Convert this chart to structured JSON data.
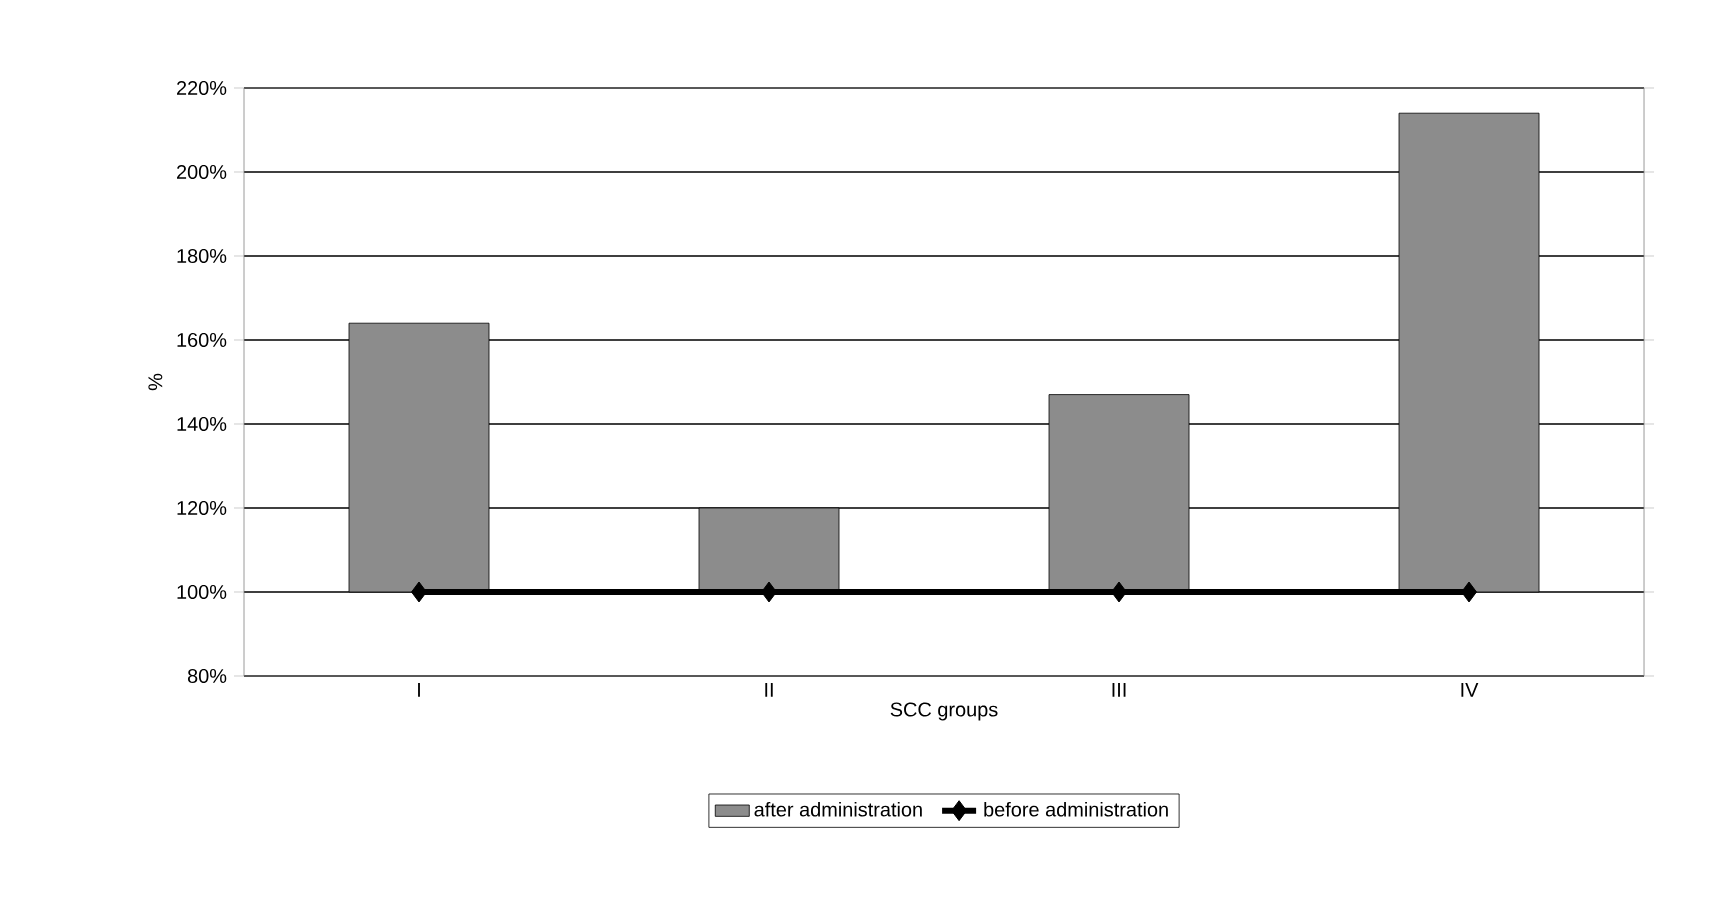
{
  "chart_data": {
    "type": "bar",
    "xlabel": "SCC groups",
    "ylabel": "%",
    "categories": [
      "I",
      "II",
      "III",
      "IV"
    ],
    "series": [
      {
        "name": "after administration",
        "color": "#8c8c8c",
        "values": [
          64,
          20,
          47,
          114
        ],
        "base": [
          100,
          100,
          100,
          100
        ]
      },
      {
        "name": "before administration",
        "type": "line",
        "color": "#000000",
        "marker": "diamond",
        "values": [
          100,
          100,
          100,
          100
        ]
      }
    ],
    "ylim": [
      80,
      220
    ],
    "yticks": [
      {
        "value": 80,
        "label": "80%"
      },
      {
        "value": 100,
        "label": "100%"
      },
      {
        "value": 120,
        "label": "120%"
      },
      {
        "value": 140,
        "label": "140%"
      },
      {
        "value": 160,
        "label": "160%"
      },
      {
        "value": 180,
        "label": "180%"
      },
      {
        "value": 200,
        "label": "200%"
      },
      {
        "value": 220,
        "label": "220%"
      }
    ],
    "grid": "y",
    "legend": "bottom"
  }
}
